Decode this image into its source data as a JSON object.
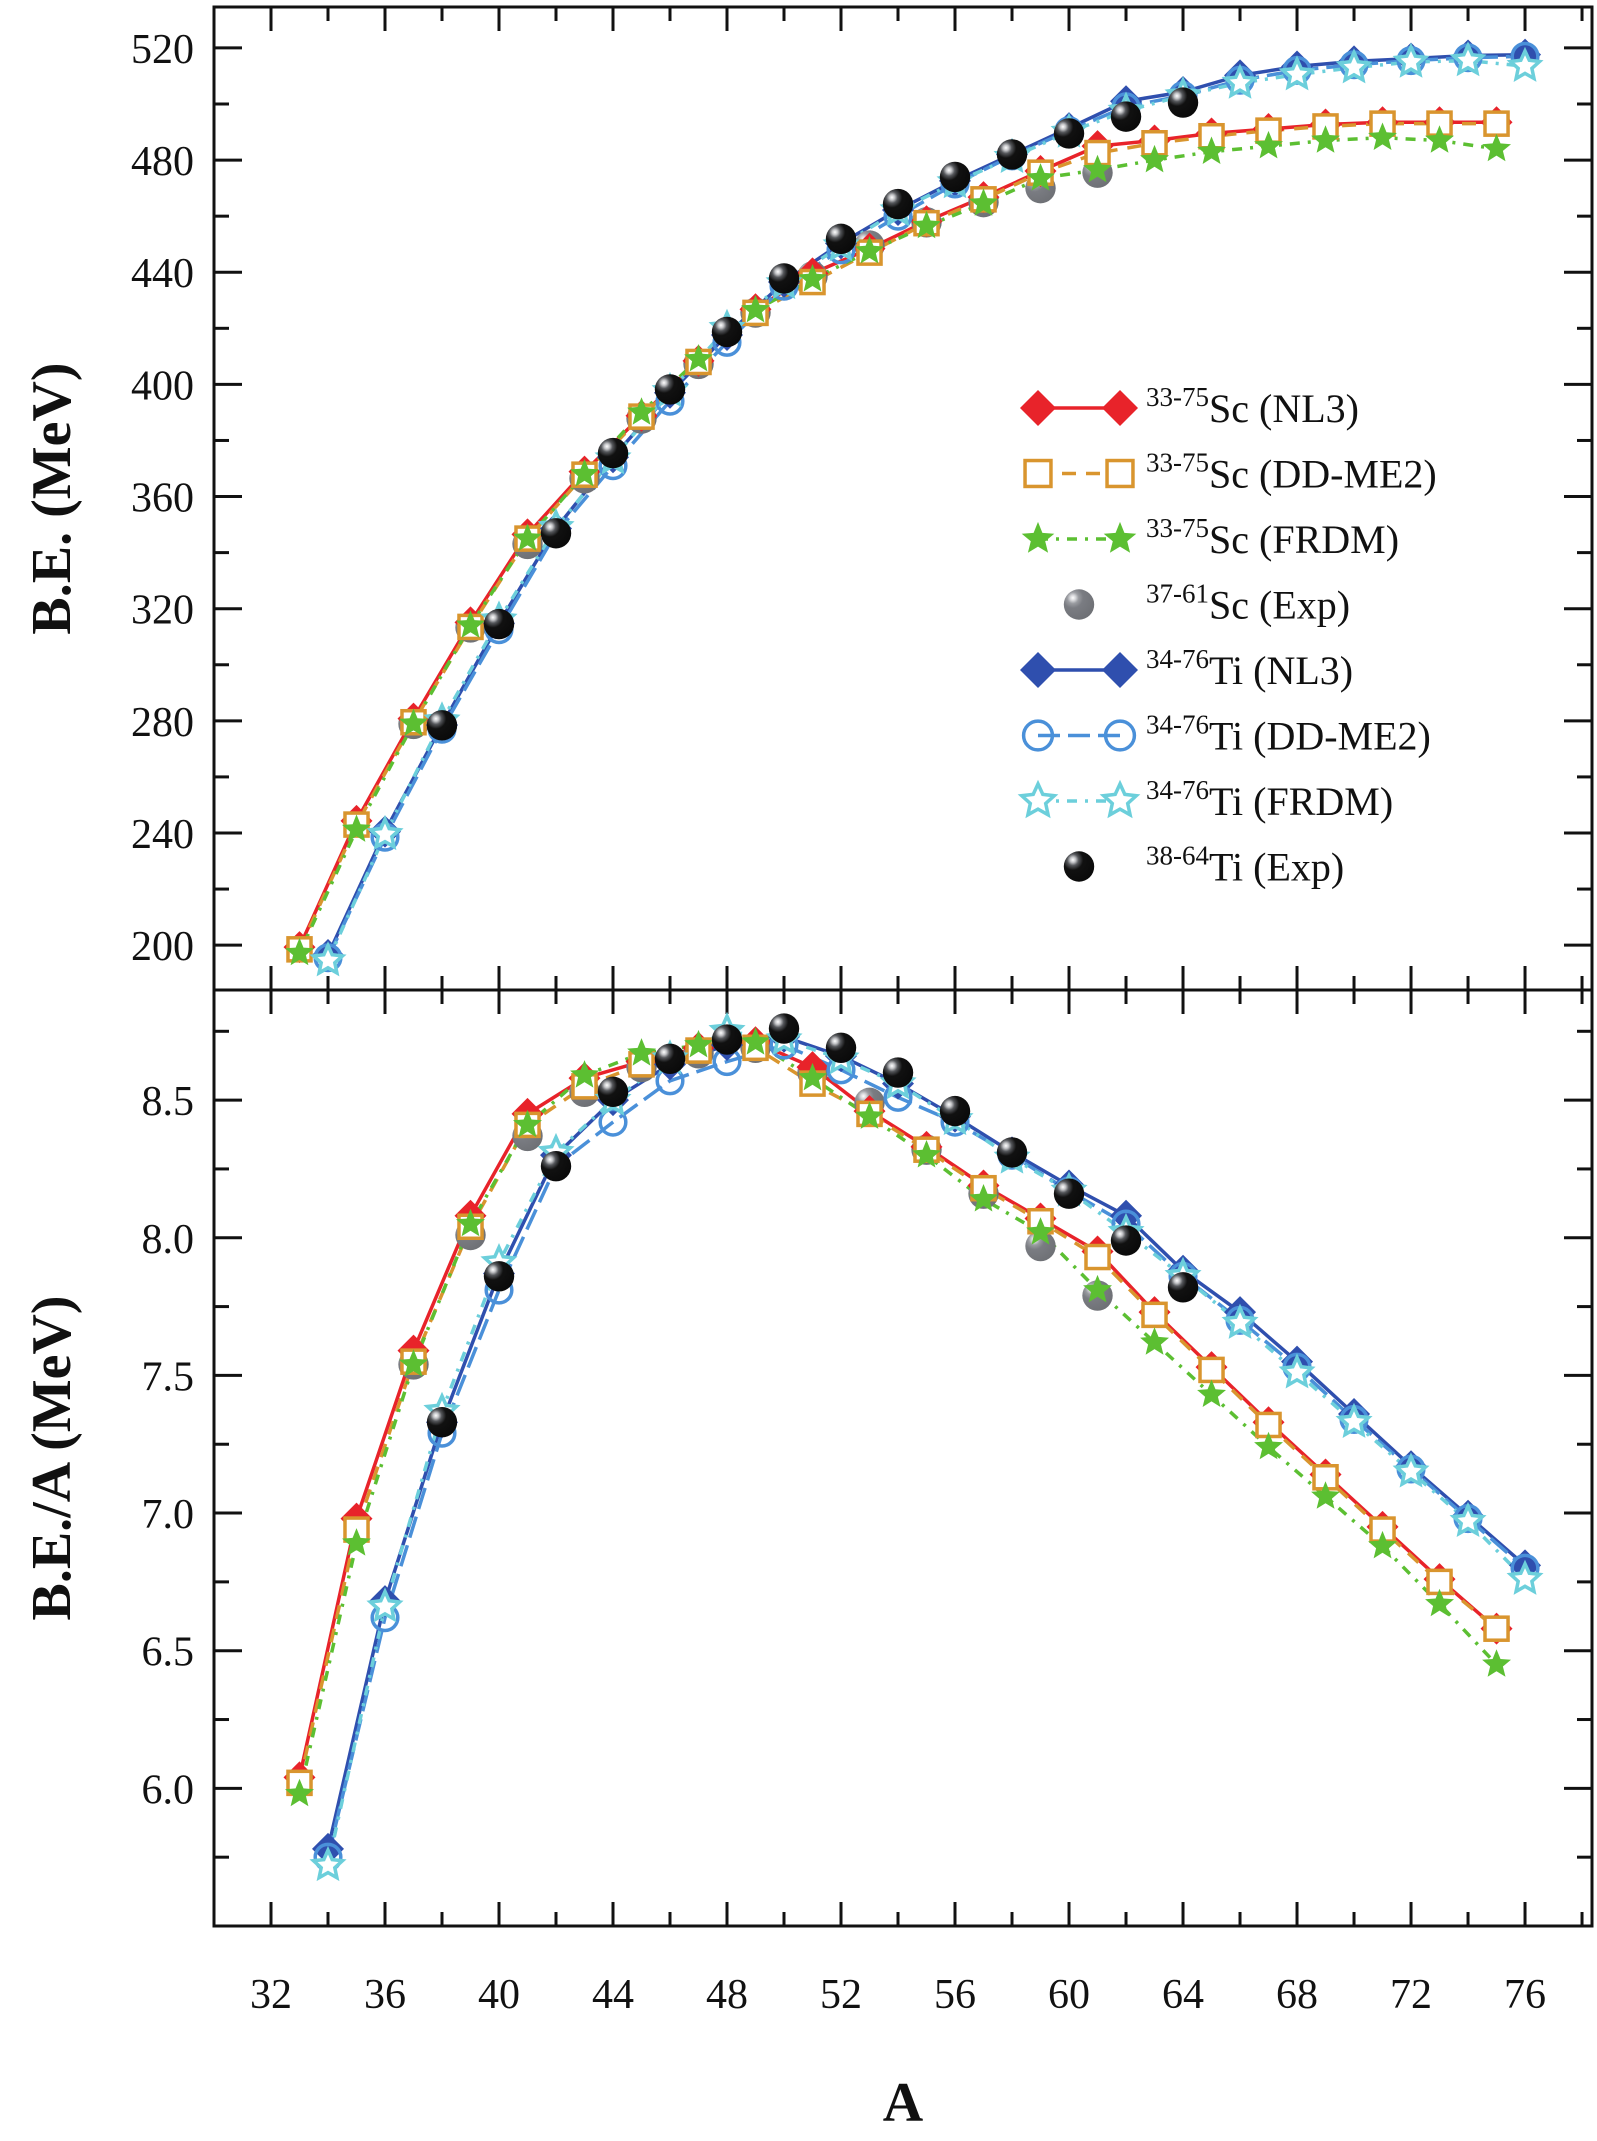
{
  "chart_data": [
    {
      "type": "line",
      "panel": "top",
      "title": "",
      "xlabel": "A",
      "ylabel": "B.E. (MeV)",
      "xlim": [
        30,
        78.35
      ],
      "ylim": [
        184,
        534.6
      ],
      "xticks": [
        32,
        36,
        40,
        44,
        48,
        52,
        56,
        60,
        64,
        68,
        72,
        76
      ],
      "yticks": [
        200,
        240,
        280,
        320,
        360,
        400,
        440,
        480,
        520
      ],
      "grid": false,
      "legend_position": "center-right",
      "series": [
        {
          "key": "sc_nl3",
          "name_sup": "33-75",
          "name_main": "Sc (NL3)",
          "color": "#e8232a",
          "marker": "diamond-filled",
          "line": "solid",
          "x": [
            33,
            35,
            37,
            39,
            41,
            43,
            45,
            47,
            49,
            51,
            53,
            55,
            57,
            59,
            61,
            63,
            65,
            67,
            69,
            71,
            73,
            75
          ],
          "y": [
            199.3,
            244.3,
            280.8,
            315.1,
            346.5,
            368.9,
            388.8,
            408.4,
            426.8,
            439.6,
            448.4,
            458.2,
            466.8,
            476.1,
            485.0,
            487.0,
            489.5,
            491.1,
            492.7,
            493.5,
            493.5,
            493.5
          ]
        },
        {
          "key": "sc_ddme2",
          "name_sup": "33-75",
          "name_main": "Sc (DD-ME2)",
          "color": "#d9952e",
          "marker": "square-open",
          "line": "dash",
          "x": [
            33,
            35,
            37,
            39,
            41,
            43,
            45,
            47,
            49,
            51,
            53,
            55,
            57,
            59,
            61,
            63,
            65,
            67,
            69,
            71,
            73,
            75
          ],
          "y": [
            198.5,
            243.0,
            279.5,
            313.5,
            345.0,
            367.8,
            388.5,
            408.0,
            425.5,
            436.5,
            447.0,
            457.5,
            466.0,
            475.5,
            482.5,
            486.0,
            488.5,
            490.5,
            492.0,
            493.0,
            493.0,
            493.0
          ]
        },
        {
          "key": "sc_frdm",
          "name_sup": "33-75",
          "name_main": "Sc (FRDM)",
          "color": "#5cbf32",
          "marker": "star-filled",
          "line": "dashdot",
          "x": [
            33,
            35,
            37,
            39,
            41,
            43,
            45,
            47,
            49,
            51,
            53,
            55,
            57,
            59,
            61,
            63,
            65,
            67,
            69,
            71,
            73,
            75
          ],
          "y": [
            197.2,
            241.2,
            279.0,
            314.0,
            345.0,
            368.0,
            390.0,
            409.0,
            426.5,
            437.5,
            447.5,
            456.5,
            464.5,
            473.5,
            476.5,
            480.0,
            483.0,
            485.0,
            487.0,
            488.0,
            487.0,
            484.0
          ]
        },
        {
          "key": "sc_exp",
          "name_sup": "37-61",
          "name_main": "Sc (Exp)",
          "color": "#7a7c82",
          "marker": "sphere",
          "line": "none",
          "x": [
            37,
            39,
            41,
            43,
            45,
            47,
            49,
            51,
            53,
            55,
            57,
            59,
            61
          ],
          "y": [
            278.9,
            313.3,
            343.1,
            366.5,
            387.8,
            407.3,
            425.6,
            438.5,
            449.5,
            457.8,
            465.0,
            470.0,
            475.5
          ]
        },
        {
          "key": "ti_nl3",
          "name_sup": "34-76",
          "name_main": "Ti  (NL3)",
          "color": "#2f4fae",
          "marker": "diamond-filled",
          "line": "solid",
          "x": [
            34,
            36,
            38,
            40,
            42,
            44,
            46,
            48,
            50,
            52,
            54,
            56,
            58,
            60,
            62,
            64,
            66,
            68,
            70,
            72,
            74,
            76
          ],
          "y": [
            196.5,
            240.5,
            278.5,
            314.8,
            348.6,
            374.0,
            397.0,
            417.6,
            436.5,
            450.3,
            462.2,
            472.6,
            482.0,
            491.4,
            501.0,
            504.3,
            510.2,
            513.4,
            515.2,
            516.2,
            517.3,
            517.6
          ]
        },
        {
          "key": "ti_ddme2",
          "name_sup": "34-76",
          "name_main": "Ti  (DD-ME2)",
          "color": "#4a90d9",
          "marker": "circle-open",
          "line": "longdash",
          "x": [
            34,
            36,
            38,
            40,
            42,
            44,
            46,
            48,
            50,
            52,
            54,
            56,
            58,
            60,
            62,
            64,
            66,
            68,
            70,
            72,
            74,
            76
          ],
          "y": [
            195.5,
            238.5,
            277.0,
            312.5,
            347.0,
            371.0,
            394.0,
            415.0,
            435.0,
            448.0,
            460.0,
            471.5,
            481.5,
            490.5,
            499.0,
            503.0,
            508.5,
            512.0,
            514.0,
            515.5,
            516.5,
            517.0
          ]
        },
        {
          "key": "ti_frdm",
          "name_sup": "34-76",
          "name_main": "Ti  (FRDM)",
          "color": "#6ccfdb",
          "marker": "star-open",
          "line": "dashdot",
          "x": [
            34,
            36,
            38,
            40,
            42,
            44,
            46,
            48,
            50,
            52,
            54,
            56,
            58,
            60,
            62,
            64,
            66,
            68,
            70,
            72,
            74,
            76
          ],
          "y": [
            194.5,
            239.5,
            280.0,
            316.0,
            349.0,
            373.5,
            397.5,
            420.0,
            436.0,
            449.5,
            462.0,
            472.0,
            481.0,
            490.0,
            497.5,
            503.0,
            507.5,
            510.5,
            513.0,
            515.0,
            515.5,
            513.5
          ]
        },
        {
          "key": "ti_exp",
          "name_sup": "38-64",
          "name_main": "Ti (Exp)",
          "color": "#111111",
          "marker": "sphere",
          "line": "none",
          "x": [
            38,
            40,
            42,
            44,
            46,
            48,
            50,
            52,
            54,
            56,
            58,
            60,
            62,
            64
          ],
          "y": [
            278.4,
            314.5,
            346.9,
            375.5,
            398.2,
            418.7,
            437.8,
            451.9,
            464.3,
            474.0,
            482.0,
            489.5,
            495.5,
            500.5
          ]
        }
      ]
    },
    {
      "type": "line",
      "panel": "bottom",
      "title": "",
      "xlabel": "A",
      "ylabel": "B.E./A (MeV)",
      "xlim": [
        30,
        78.35
      ],
      "ylim": [
        5.5,
        8.9
      ],
      "xticks": [
        32,
        36,
        40,
        44,
        48,
        52,
        56,
        60,
        64,
        68,
        72,
        76
      ],
      "yticks": [
        6.0,
        6.5,
        7.0,
        7.5,
        8.0,
        8.5
      ],
      "ytick_labels": [
        "6.0",
        "6.5",
        "7.0",
        "7.5",
        "8.0",
        "8.5"
      ],
      "grid": false,
      "series": [
        {
          "key": "sc_nl3",
          "color": "#e8232a",
          "marker": "diamond-filled",
          "line": "solid",
          "x": [
            33,
            35,
            37,
            39,
            41,
            43,
            45,
            47,
            49,
            51,
            53,
            55,
            57,
            59,
            61,
            63,
            65,
            67,
            69,
            71,
            73,
            75
          ],
          "y": [
            6.04,
            6.98,
            7.59,
            8.08,
            8.45,
            8.58,
            8.64,
            8.69,
            8.71,
            8.62,
            8.46,
            8.33,
            8.19,
            8.07,
            7.95,
            7.73,
            7.53,
            7.33,
            7.14,
            6.95,
            6.76,
            6.58
          ]
        },
        {
          "key": "sc_ddme2",
          "color": "#d9952e",
          "marker": "square-open",
          "line": "dash",
          "x": [
            33,
            35,
            37,
            39,
            41,
            43,
            45,
            47,
            49,
            51,
            53,
            55,
            57,
            59,
            61,
            63,
            65,
            67,
            69,
            71,
            73,
            75
          ],
          "y": [
            6.02,
            6.94,
            7.55,
            8.04,
            8.41,
            8.55,
            8.63,
            8.68,
            8.69,
            8.56,
            8.45,
            8.32,
            8.18,
            8.06,
            7.93,
            7.72,
            7.52,
            7.32,
            7.13,
            6.94,
            6.75,
            6.58
          ]
        },
        {
          "key": "sc_frdm",
          "color": "#5cbf32",
          "marker": "star-filled",
          "line": "dashdot",
          "x": [
            33,
            35,
            37,
            39,
            41,
            43,
            45,
            47,
            49,
            51,
            53,
            55,
            57,
            59,
            61,
            63,
            65,
            67,
            69,
            71,
            73,
            75
          ],
          "y": [
            5.98,
            6.89,
            7.54,
            8.05,
            8.41,
            8.59,
            8.67,
            8.7,
            8.71,
            8.58,
            8.44,
            8.3,
            8.14,
            8.02,
            7.81,
            7.62,
            7.43,
            7.24,
            7.06,
            6.88,
            6.67,
            6.45
          ]
        },
        {
          "key": "sc_exp",
          "color": "#7a7c82",
          "marker": "sphere",
          "line": "none",
          "x": [
            37,
            39,
            41,
            43,
            45,
            47,
            49,
            51,
            53,
            55,
            57,
            59,
            61
          ],
          "y": [
            7.54,
            8.01,
            8.37,
            8.53,
            8.62,
            8.67,
            8.69,
            8.6,
            8.49,
            8.32,
            8.16,
            7.97,
            7.79
          ]
        },
        {
          "key": "ti_nl3",
          "color": "#2f4fae",
          "marker": "diamond-filled",
          "line": "solid",
          "x": [
            34,
            36,
            38,
            40,
            42,
            44,
            46,
            48,
            50,
            52,
            54,
            56,
            58,
            60,
            62,
            64,
            66,
            68,
            70,
            72,
            74,
            76
          ],
          "y": [
            5.78,
            6.68,
            7.33,
            7.87,
            8.3,
            8.5,
            8.63,
            8.7,
            8.73,
            8.66,
            8.56,
            8.44,
            8.31,
            8.19,
            8.08,
            7.88,
            7.73,
            7.55,
            7.36,
            7.17,
            6.99,
            6.81
          ]
        },
        {
          "key": "ti_ddme2",
          "color": "#4a90d9",
          "marker": "circle-open",
          "line": "longdash",
          "x": [
            34,
            36,
            38,
            40,
            42,
            44,
            46,
            48,
            50,
            52,
            54,
            56,
            58,
            60,
            62,
            64,
            66,
            68,
            70,
            72,
            74,
            76
          ],
          "y": [
            5.75,
            6.62,
            7.29,
            7.81,
            8.26,
            8.42,
            8.57,
            8.64,
            8.7,
            8.61,
            8.51,
            8.42,
            8.3,
            8.17,
            8.05,
            7.86,
            7.7,
            7.53,
            7.34,
            7.16,
            6.98,
            6.8
          ]
        },
        {
          "key": "ti_frdm",
          "color": "#6ccfdb",
          "marker": "star-open",
          "line": "dashdot",
          "x": [
            34,
            36,
            38,
            40,
            42,
            44,
            46,
            48,
            50,
            52,
            54,
            56,
            58,
            60,
            62,
            64,
            66,
            68,
            70,
            72,
            74,
            76
          ],
          "y": [
            5.72,
            6.66,
            7.37,
            7.91,
            8.31,
            8.5,
            8.65,
            8.75,
            8.72,
            8.65,
            8.56,
            8.43,
            8.29,
            8.17,
            8.02,
            7.86,
            7.69,
            7.51,
            7.33,
            7.15,
            6.97,
            6.76
          ]
        },
        {
          "key": "ti_exp",
          "color": "#111111",
          "marker": "sphere",
          "line": "none",
          "x": [
            38,
            40,
            42,
            44,
            46,
            48,
            50,
            52,
            54,
            56,
            58,
            60,
            62,
            64
          ],
          "y": [
            7.33,
            7.86,
            8.26,
            8.53,
            8.65,
            8.72,
            8.76,
            8.69,
            8.6,
            8.46,
            8.31,
            8.16,
            7.99,
            7.82
          ]
        }
      ]
    }
  ]
}
